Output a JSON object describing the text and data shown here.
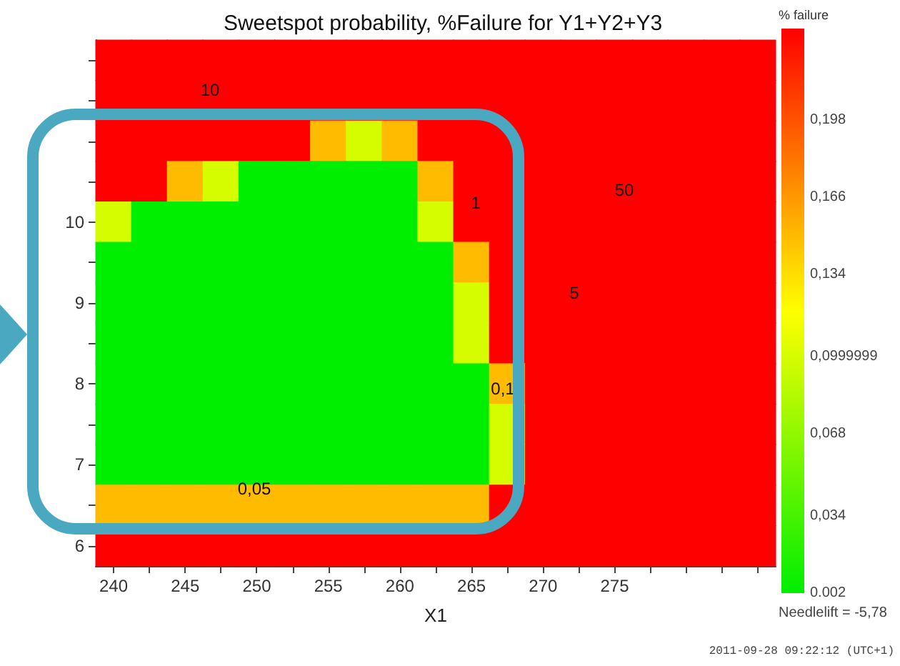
{
  "chart_data": {
    "type": "heatmap",
    "title": "Sweetspot probability, %Failure for Y1+Y2+Y3",
    "xlabel": "X1",
    "clabel": "% failure",
    "categories": [
      "240",
      null,
      "245",
      null,
      "250",
      null,
      "255",
      null,
      "260",
      null,
      "265",
      null,
      "270",
      null,
      "275",
      null,
      null,
      null,
      null
    ],
    "y_categories": [
      null,
      null,
      null,
      null,
      "10",
      null,
      "9",
      null,
      "8",
      null,
      "7",
      null,
      "6"
    ],
    "cells": [
      [
        0.236,
        0.236,
        0.236,
        0.236,
        0.236,
        0.236,
        0.236,
        0.236,
        0.236,
        0.236,
        0.236,
        0.236,
        0.236,
        0.236,
        0.236,
        0.236,
        0.236,
        0.236,
        0.236
      ],
      [
        0.236,
        0.236,
        0.236,
        0.236,
        0.236,
        0.236,
        0.236,
        0.236,
        0.236,
        0.236,
        0.236,
        0.236,
        0.236,
        0.236,
        0.236,
        0.236,
        0.236,
        0.236,
        0.236
      ],
      [
        0.236,
        0.236,
        0.236,
        0.236,
        0.236,
        0.236,
        0.15,
        0.1,
        0.15,
        0.236,
        0.236,
        0.236,
        0.236,
        0.236,
        0.236,
        0.236,
        0.236,
        0.236,
        0.236
      ],
      [
        0.236,
        0.236,
        0.15,
        0.1,
        0.002,
        0.002,
        0.002,
        0.002,
        0.002,
        0.15,
        0.236,
        0.236,
        0.236,
        0.236,
        0.236,
        0.236,
        0.236,
        0.236,
        0.236
      ],
      [
        0.1,
        0.002,
        0.002,
        0.002,
        0.002,
        0.002,
        0.002,
        0.002,
        0.002,
        0.1,
        0.236,
        0.236,
        0.236,
        0.236,
        0.236,
        0.236,
        0.236,
        0.236,
        0.236
      ],
      [
        0.002,
        0.002,
        0.002,
        0.002,
        0.002,
        0.002,
        0.002,
        0.002,
        0.002,
        0.002,
        0.15,
        0.236,
        0.236,
        0.236,
        0.236,
        0.236,
        0.236,
        0.236,
        0.236
      ],
      [
        0.002,
        0.002,
        0.002,
        0.002,
        0.002,
        0.002,
        0.002,
        0.002,
        0.002,
        0.002,
        0.1,
        0.236,
        0.236,
        0.236,
        0.236,
        0.236,
        0.236,
        0.236,
        0.236
      ],
      [
        0.002,
        0.002,
        0.002,
        0.002,
        0.002,
        0.002,
        0.002,
        0.002,
        0.002,
        0.002,
        0.1,
        0.236,
        0.236,
        0.236,
        0.236,
        0.236,
        0.236,
        0.236,
        0.236
      ],
      [
        0.002,
        0.002,
        0.002,
        0.002,
        0.002,
        0.002,
        0.002,
        0.002,
        0.002,
        0.002,
        0.002,
        0.15,
        0.236,
        0.236,
        0.236,
        0.236,
        0.236,
        0.236,
        0.236
      ],
      [
        0.002,
        0.002,
        0.002,
        0.002,
        0.002,
        0.002,
        0.002,
        0.002,
        0.002,
        0.002,
        0.002,
        0.1,
        0.236,
        0.236,
        0.236,
        0.236,
        0.236,
        0.236,
        0.236
      ],
      [
        0.002,
        0.002,
        0.002,
        0.002,
        0.002,
        0.002,
        0.002,
        0.002,
        0.002,
        0.002,
        0.002,
        0.1,
        0.236,
        0.236,
        0.236,
        0.236,
        0.236,
        0.236,
        0.236
      ],
      [
        0.15,
        0.15,
        0.15,
        0.15,
        0.15,
        0.15,
        0.15,
        0.15,
        0.15,
        0.15,
        0.15,
        0.236,
        0.236,
        0.236,
        0.236,
        0.236,
        0.236,
        0.236,
        0.236
      ],
      [
        0.236,
        0.236,
        0.236,
        0.236,
        0.236,
        0.236,
        0.236,
        0.236,
        0.236,
        0.236,
        0.236,
        0.236,
        0.236,
        0.236,
        0.236,
        0.236,
        0.236,
        0.236,
        0.236
      ]
    ],
    "colors": [
      "#00ee00",
      "#ffff00",
      "#ff0000"
    ],
    "clim": [
      0.002,
      0.236
    ],
    "cticks": [
      0.002,
      {
        "value": 0.034,
        "label": "0,034"
      },
      {
        "value": 0.068,
        "label": "0,068"
      },
      {
        "value": 0.0999999,
        "label": "0,0999999"
      },
      {
        "value": 0.134,
        "label": "0,134"
      },
      {
        "value": 0.166,
        "label": "0,166"
      },
      {
        "value": 0.198,
        "label": "0,198"
      }
    ],
    "annotations": [
      "10",
      "1",
      "50",
      "5",
      "0,1",
      "0,05",
      "Needlelift = -5,78",
      "2011-09-28 09:22:12 (UTC+1)"
    ]
  }
}
